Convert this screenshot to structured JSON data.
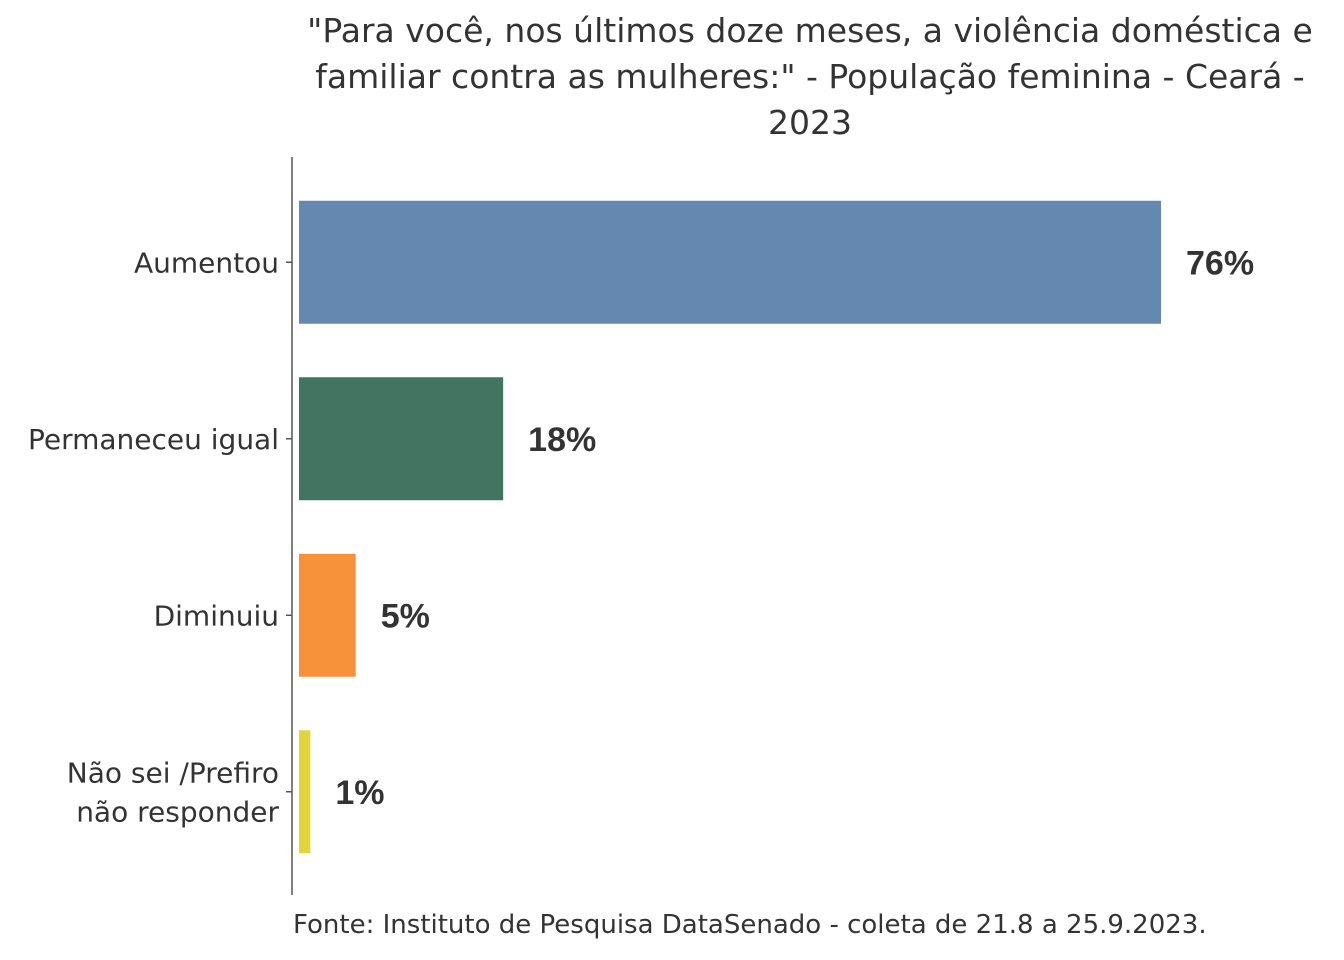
{
  "chart_data": {
    "type": "bar",
    "orientation": "horizontal",
    "title": "\"Para você, nos últimos doze meses, a violência doméstica e\nfamiliar contra as mulheres:\" - População feminina - Ceará -\n2023",
    "categories": [
      "Aumentou",
      "Permaneceu igual",
      "Diminuiu",
      "Não sei /Prefiro\nnão responder"
    ],
    "values": [
      76,
      18,
      5,
      1
    ],
    "value_labels": [
      "76%",
      "18%",
      "5%",
      "1%"
    ],
    "colors": [
      "#6588b0",
      "#437462",
      "#f7913a",
      "#e2d43a"
    ],
    "xlim": [
      0,
      100
    ],
    "grid": false,
    "legend": "none",
    "source": "Fonte: Instituto de Pesquisa DataSenado - coleta de 21.8 a 25.9.2023."
  }
}
